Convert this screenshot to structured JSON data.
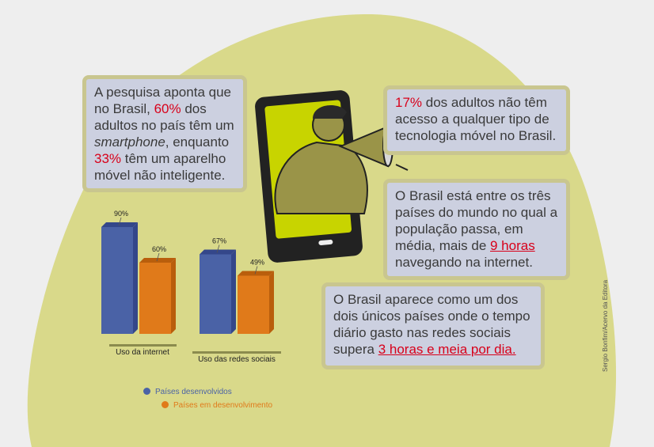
{
  "box1": {
    "p1": "A pesquisa aponta que no Brasil, ",
    "v1": "60%",
    "p2": " dos adultos no país têm um ",
    "italic": "smartphone",
    "p3": ", enquanto ",
    "v2": "33%",
    "p4": " têm um aparelho móvel não inteligente."
  },
  "box2": {
    "v1": "17%",
    "p1": " dos adultos não têm acesso a qualquer tipo de tecnologia móvel no Brasil."
  },
  "box3": {
    "p1": "O Brasil está entre os três países do mundo no qual a população passa, em média, mais de ",
    "v1": "9 horas",
    "p2": " navegando na internet."
  },
  "box4": {
    "p1": "O Brasil aparece como um dos dois únicos países onde o tempo diário gasto nas redes sociais supera ",
    "v1": "3 horas e meia por dia."
  },
  "credit": "Sergio Bonfim/Acervo da Editora",
  "colors": {
    "developed": "#4a62a6",
    "developing": "#e07a1a",
    "blob": "#d9d98a",
    "highlight": "#d8001a"
  },
  "chart_data": {
    "type": "bar",
    "categories": [
      "Uso da internet",
      "Uso das redes sociais"
    ],
    "series": [
      {
        "name": "Países desenvolvidos",
        "values": [
          90,
          67
        ],
        "labels": [
          "90%",
          "67%"
        ]
      },
      {
        "name": "Países em desenvolvimento",
        "values": [
          60,
          49
        ],
        "labels": [
          "60%",
          "49%"
        ]
      }
    ],
    "ylim": [
      0,
      100
    ],
    "legend_position": "bottom-left"
  }
}
